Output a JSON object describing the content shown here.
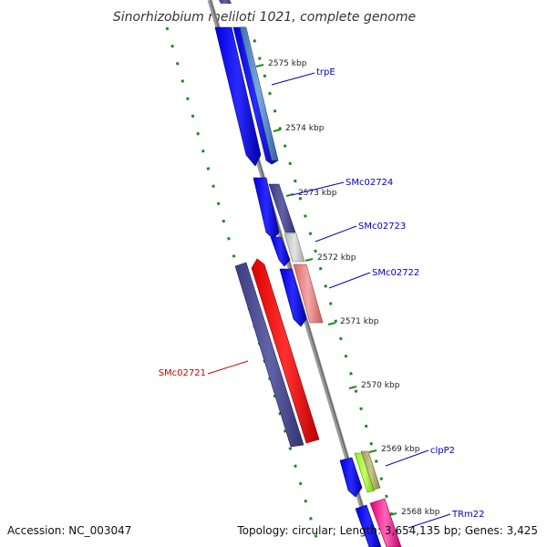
{
  "title": "Sinorhizobium meliloti 1021, complete genome",
  "footer": {
    "accession": "Accession: NC_003047",
    "topology": "Topology: circular; Length: 3,654,135 bp; Genes: 3,425"
  },
  "colors": {
    "backbone": "#888888",
    "label_forward": "#0000cc",
    "label_reverse": "#cc0000",
    "gc_ticks": "#228b22",
    "tick": "#228b22"
  },
  "scale": {
    "unit": "kbp",
    "ticks": [
      2575,
      2574,
      2573,
      2572,
      2571,
      2570,
      2569,
      2568
    ],
    "tick_labels": [
      "2575 kbp",
      "2574 kbp",
      "2573 kbp",
      "2572 kbp",
      "2571 kbp",
      "2570 kbp",
      "2569 kbp",
      "2568 kbp"
    ]
  },
  "gene_labels": [
    {
      "name": "trpE",
      "strand": "forward"
    },
    {
      "name": "SMc02724",
      "strand": "forward"
    },
    {
      "name": "SMc02723",
      "strand": "forward"
    },
    {
      "name": "SMc02722",
      "strand": "forward"
    },
    {
      "name": "SMc02721",
      "strand": "reverse"
    },
    {
      "name": "clpP2",
      "strand": "forward"
    },
    {
      "name": "TRm22",
      "strand": "forward"
    }
  ]
}
